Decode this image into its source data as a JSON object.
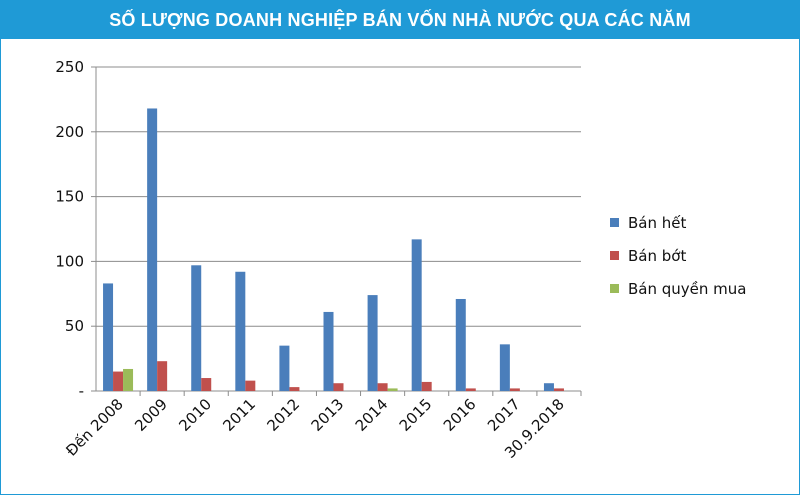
{
  "header": {
    "title": "SỐ LƯỢNG DOANH NGHIỆP BÁN VỐN NHÀ NƯỚC QUA CÁC NĂM",
    "background_color": "#1f9ad6"
  },
  "chart_data": {
    "type": "bar",
    "title": "SỐ LƯỢNG DOANH NGHIỆP BÁN VỐN NHÀ NƯỚC QUA CÁC NĂM",
    "xlabel": "",
    "ylabel": "",
    "ylim": [
      0,
      250
    ],
    "y_ticks": [
      "-",
      "50",
      "100",
      "150",
      "200",
      "250"
    ],
    "grid": true,
    "legend_position": "right",
    "categories": [
      "Đến 2008",
      "2009",
      "2010",
      "2011",
      "2012",
      "2013",
      "2014",
      "2015",
      "2016",
      "2017",
      "30.9.2018"
    ],
    "series": [
      {
        "name": "Bán hết",
        "color": "#4a7ebb",
        "values": [
          83,
          218,
          97,
          92,
          35,
          61,
          74,
          117,
          71,
          36,
          6
        ]
      },
      {
        "name": "Bán bớt",
        "color": "#c0504d",
        "values": [
          15,
          23,
          10,
          8,
          3,
          6,
          6,
          7,
          2,
          2,
          2
        ]
      },
      {
        "name": "Bán quyền mua",
        "color": "#9bbb59",
        "values": [
          17,
          0,
          0,
          0,
          0,
          0,
          2,
          0,
          0,
          0,
          0
        ]
      }
    ]
  }
}
